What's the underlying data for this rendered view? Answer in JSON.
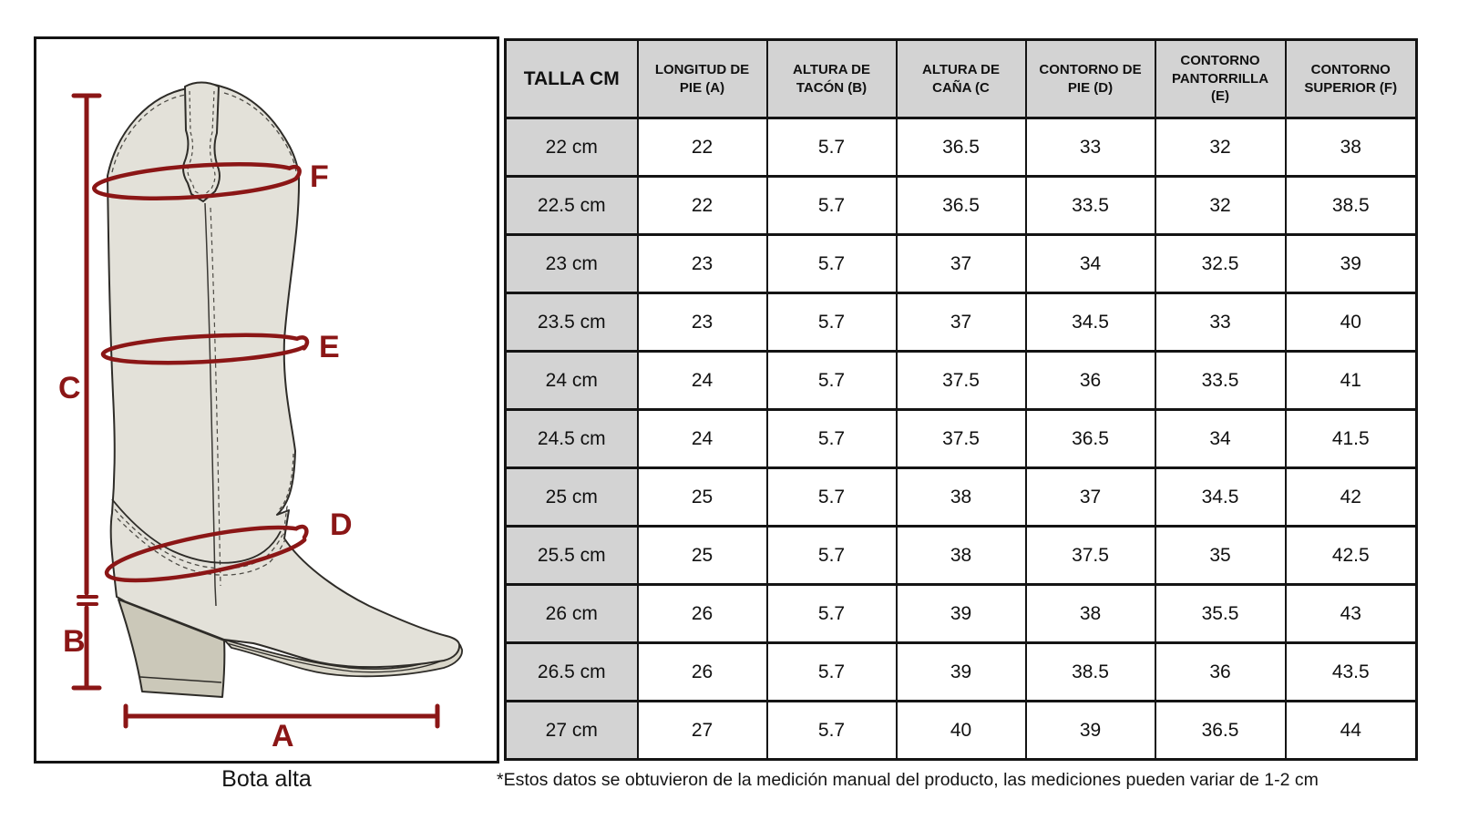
{
  "diagram": {
    "caption": "Bota alta",
    "labels": {
      "a": "A",
      "b": "B",
      "c": "C",
      "d": "D",
      "e": "E",
      "f": "F"
    },
    "accent_color": "#8b1616"
  },
  "table": {
    "header_bg": "#d3d3d3",
    "headers": [
      "TALLA CM",
      "LONGITUD DE PIE (A)",
      "ALTURA DE TACÓN (B)",
      "ALTURA DE CAÑA (C",
      "CONTORNO DE PIE (D)",
      "CONTORNO PANTORRILLA (E)",
      "CONTORNO SUPERIOR (F)"
    ],
    "rows": [
      {
        "cells": [
          "22 cm",
          "22",
          "5.7",
          "36.5",
          "33",
          "32",
          "38"
        ]
      },
      {
        "cells": [
          "22.5 cm",
          "22",
          "5.7",
          "36.5",
          "33.5",
          "32",
          "38.5"
        ]
      },
      {
        "cells": [
          "23 cm",
          "23",
          "5.7",
          "37",
          "34",
          "32.5",
          "39"
        ]
      },
      {
        "cells": [
          "23.5 cm",
          "23",
          "5.7",
          "37",
          "34.5",
          "33",
          "40"
        ]
      },
      {
        "cells": [
          "24 cm",
          "24",
          "5.7",
          "37.5",
          "36",
          "33.5",
          "41"
        ]
      },
      {
        "cells": [
          "24.5 cm",
          "24",
          "5.7",
          "37.5",
          "36.5",
          "34",
          "41.5"
        ]
      },
      {
        "cells": [
          "25 cm",
          "25",
          "5.7",
          "38",
          "37",
          "34.5",
          "42"
        ]
      },
      {
        "cells": [
          "25.5 cm",
          "25",
          "5.7",
          "38",
          "37.5",
          "35",
          "42.5"
        ]
      },
      {
        "cells": [
          "26 cm",
          "26",
          "5.7",
          "39",
          "38",
          "35.5",
          "43"
        ]
      },
      {
        "cells": [
          "26.5 cm",
          "26",
          "5.7",
          "39",
          "38.5",
          "36",
          "43.5"
        ]
      },
      {
        "cells": [
          "27 cm",
          "27",
          "5.7",
          "40",
          "39",
          "36.5",
          "44"
        ]
      }
    ]
  },
  "footnote": "*Estos datos se obtuvieron de la medición manual del producto, las mediciones pueden variar de 1-2 cm"
}
